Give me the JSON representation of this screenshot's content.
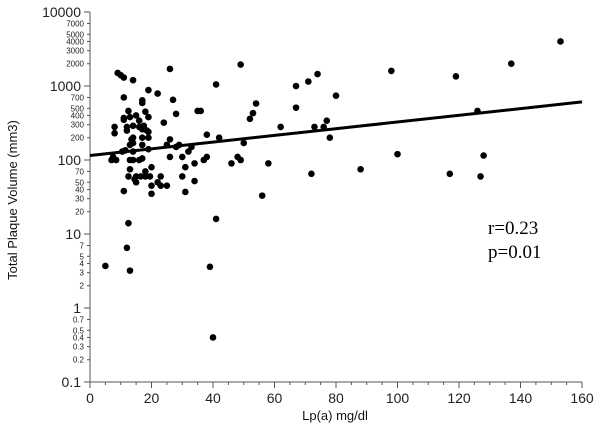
{
  "chart_data": {
    "type": "scatter",
    "title": "",
    "xlabel": "Lp(a) mg/dl",
    "ylabel": "Total Plaque Volume (mm3)",
    "xlim": [
      0,
      160
    ],
    "ylim": [
      0.1,
      10000
    ],
    "y_scale": "log",
    "grid": false,
    "legend": "none",
    "x_ticks": [
      0,
      20,
      40,
      60,
      80,
      100,
      120,
      140,
      160
    ],
    "y_ticks_major": [
      {
        "value": 0.1,
        "label": "0.1"
      },
      {
        "value": 1,
        "label": "1"
      },
      {
        "value": 10,
        "label": "10"
      },
      {
        "value": 100,
        "label": "100"
      },
      {
        "value": 1000,
        "label": "1000"
      },
      {
        "value": 10000,
        "label": "10000"
      }
    ],
    "y_ticks_minor": [
      {
        "value": 0.2,
        "label": "0.2"
      },
      {
        "value": 0.3,
        "label": "0.3"
      },
      {
        "value": 0.4,
        "label": "0.4"
      },
      {
        "value": 0.5,
        "label": "0.5"
      },
      {
        "value": 0.7,
        "label": "0.7"
      },
      {
        "value": 2,
        "label": "2"
      },
      {
        "value": 3,
        "label": "3"
      },
      {
        "value": 4,
        "label": "4"
      },
      {
        "value": 5,
        "label": "5"
      },
      {
        "value": 7,
        "label": "7"
      },
      {
        "value": 20,
        "label": "20"
      },
      {
        "value": 30,
        "label": "30"
      },
      {
        "value": 40,
        "label": "40"
      },
      {
        "value": 50,
        "label": "50"
      },
      {
        "value": 70,
        "label": "70"
      },
      {
        "value": 200,
        "label": "200"
      },
      {
        "value": 300,
        "label": "300"
      },
      {
        "value": 400,
        "label": "400"
      },
      {
        "value": 500,
        "label": "500"
      },
      {
        "value": 700,
        "label": "700"
      },
      {
        "value": 2000,
        "label": "2000"
      },
      {
        "value": 3000,
        "label": "3000"
      },
      {
        "value": 4000,
        "label": "4000"
      },
      {
        "value": 5000,
        "label": "5000"
      },
      {
        "value": 7000,
        "label": "7000"
      }
    ],
    "points": [
      [
        5,
        3.7
      ],
      [
        7,
        100
      ],
      [
        7.5,
        110
      ],
      [
        8,
        280
      ],
      [
        8,
        230
      ],
      [
        8.5,
        100
      ],
      [
        9,
        1500
      ],
      [
        10,
        1400
      ],
      [
        10.5,
        130
      ],
      [
        11,
        1300
      ],
      [
        11,
        370
      ],
      [
        11,
        700
      ],
      [
        11,
        350
      ],
      [
        11,
        38
      ],
      [
        11.5,
        135
      ],
      [
        12,
        6.5
      ],
      [
        12,
        280
      ],
      [
        12,
        250
      ],
      [
        12.5,
        460
      ],
      [
        12.5,
        14
      ],
      [
        13,
        3.2
      ],
      [
        13,
        160
      ],
      [
        13,
        380
      ],
      [
        13.5,
        190
      ],
      [
        13,
        100
      ],
      [
        13,
        75
      ],
      [
        12.5,
        60
      ],
      [
        14,
        1200
      ],
      [
        14,
        290
      ],
      [
        14,
        200
      ],
      [
        14,
        170
      ],
      [
        14,
        130
      ],
      [
        14,
        100
      ],
      [
        14.5,
        55
      ],
      [
        15,
        400
      ],
      [
        15,
        50
      ],
      [
        15,
        60
      ],
      [
        16,
        340
      ],
      [
        16,
        280
      ],
      [
        16,
        100
      ],
      [
        16.5,
        60
      ],
      [
        17,
        640
      ],
      [
        17,
        590
      ],
      [
        17,
        260
      ],
      [
        17,
        200
      ],
      [
        17.5,
        290
      ],
      [
        17,
        160
      ],
      [
        17,
        105
      ],
      [
        18,
        70
      ],
      [
        18,
        60
      ],
      [
        18.5,
        250
      ],
      [
        18,
        450
      ],
      [
        19,
        880
      ],
      [
        19,
        380
      ],
      [
        19,
        240
      ],
      [
        19,
        200
      ],
      [
        19,
        140
      ],
      [
        20,
        45
      ],
      [
        20,
        35
      ],
      [
        19.5,
        60
      ],
      [
        20,
        80
      ],
      [
        22,
        790
      ],
      [
        22,
        50
      ],
      [
        23,
        45
      ],
      [
        23,
        60
      ],
      [
        24,
        320
      ],
      [
        25,
        160
      ],
      [
        25,
        45
      ],
      [
        26,
        1700
      ],
      [
        26,
        110
      ],
      [
        26,
        190
      ],
      [
        27,
        650
      ],
      [
        28,
        420
      ],
      [
        28,
        150
      ],
      [
        29,
        160
      ],
      [
        30,
        110
      ],
      [
        30,
        60
      ],
      [
        31,
        37
      ],
      [
        31,
        80
      ],
      [
        32,
        130
      ],
      [
        33,
        150
      ],
      [
        34,
        90
      ],
      [
        34,
        52
      ],
      [
        35,
        460
      ],
      [
        36,
        460
      ],
      [
        37,
        100
      ],
      [
        38,
        110
      ],
      [
        38,
        220
      ],
      [
        39,
        3.6
      ],
      [
        40,
        0.4
      ],
      [
        41,
        16
      ],
      [
        41,
        1050
      ],
      [
        42,
        200
      ],
      [
        46,
        90
      ],
      [
        48,
        110
      ],
      [
        49,
        1950
      ],
      [
        49,
        100
      ],
      [
        50,
        170
      ],
      [
        52,
        360
      ],
      [
        53,
        430
      ],
      [
        54,
        580
      ],
      [
        56,
        33
      ],
      [
        58,
        90
      ],
      [
        62,
        280
      ],
      [
        67,
        1000
      ],
      [
        67,
        510
      ],
      [
        71,
        1150
      ],
      [
        72,
        65
      ],
      [
        73,
        280
      ],
      [
        74,
        1450
      ],
      [
        76,
        280
      ],
      [
        77,
        340
      ],
      [
        78,
        200
      ],
      [
        80,
        740
      ],
      [
        88,
        75
      ],
      [
        98,
        1600
      ],
      [
        100,
        120
      ],
      [
        117,
        65
      ],
      [
        119,
        1350
      ],
      [
        126,
        460
      ],
      [
        127,
        60
      ],
      [
        128,
        115
      ],
      [
        137,
        2000
      ],
      [
        153,
        4000
      ]
    ],
    "regression_line": {
      "x": [
        0,
        160
      ],
      "y": [
        115,
        610
      ]
    },
    "annotations": [
      "r=0.23",
      "p=0.01"
    ]
  }
}
